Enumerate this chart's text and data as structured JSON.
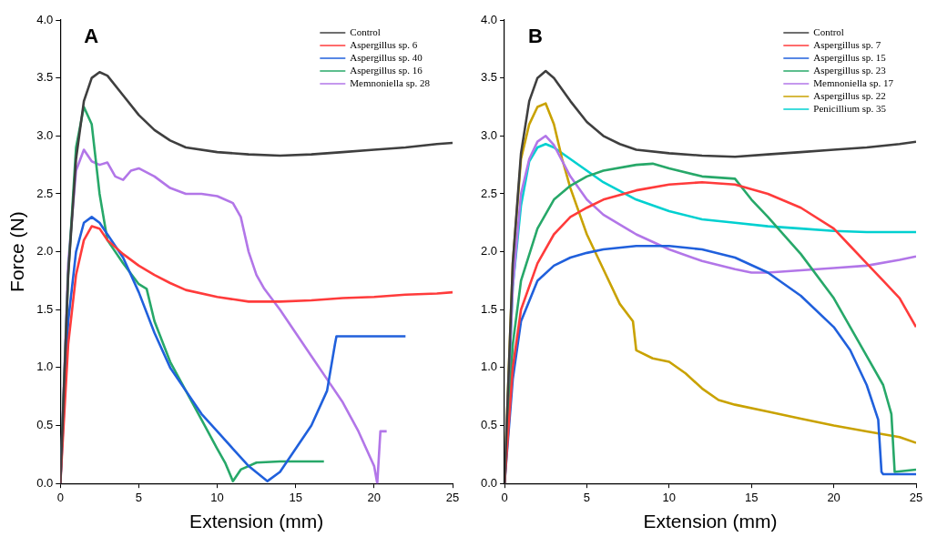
{
  "chart_data": [
    {
      "type": "line",
      "title": "A",
      "xlabel": "Extension (mm)",
      "ylabel": "Force (N)",
      "xlim": [
        0,
        25
      ],
      "xticks": [
        0,
        5,
        10,
        15,
        20,
        25
      ],
      "ylim": [
        0,
        4
      ],
      "yticks": [
        {
          "value": 0,
          "label": "0.0"
        },
        {
          "value": 0.5,
          "label": "0.5"
        },
        {
          "value": 1,
          "label": "1.0"
        },
        {
          "value": 1.5,
          "label": "1.5"
        },
        {
          "value": 2,
          "label": "2.0"
        },
        {
          "value": 2.5,
          "label": "2.5"
        },
        {
          "value": 3,
          "label": "3.0"
        },
        {
          "value": 3.5,
          "label": "3.5"
        },
        {
          "value": 4,
          "label": "4.0"
        }
      ],
      "grid": false,
      "legend": "top right",
      "marker": "none",
      "line_style": "solid",
      "series": [
        {
          "name": "Control",
          "color": "#3f3f3f",
          "x": [
            0,
            0.5,
            1,
            1.5,
            2,
            2.5,
            3,
            4,
            5,
            6,
            7,
            8,
            10,
            12,
            14,
            16,
            18,
            20,
            22,
            24,
            25
          ],
          "values": [
            0,
            1.8,
            2.8,
            3.3,
            3.5,
            3.55,
            3.52,
            3.35,
            3.18,
            3.05,
            2.96,
            2.9,
            2.86,
            2.84,
            2.83,
            2.84,
            2.86,
            2.88,
            2.9,
            2.93,
            2.94
          ]
        },
        {
          "name": "Aspergillus sp. 6",
          "color": "#ff3b3b",
          "x": [
            0,
            0.5,
            1,
            1.5,
            2,
            2.5,
            3,
            4,
            5,
            6,
            7,
            8,
            10,
            12,
            14,
            16,
            18,
            20,
            22,
            24,
            25
          ],
          "values": [
            0,
            1.2,
            1.8,
            2.1,
            2.22,
            2.2,
            2.1,
            1.98,
            1.88,
            1.8,
            1.73,
            1.67,
            1.61,
            1.57,
            1.57,
            1.58,
            1.6,
            1.61,
            1.63,
            1.64,
            1.65
          ]
        },
        {
          "name": "Aspergillus sp. 40",
          "color": "#2060dc",
          "x": [
            0,
            0.5,
            1,
            1.5,
            2,
            2.5,
            3,
            4,
            5,
            6,
            7,
            8,
            9,
            10,
            11,
            12,
            13.2,
            14,
            15,
            16,
            17,
            17.5,
            17.6,
            20,
            22
          ],
          "values": [
            0,
            1.4,
            2,
            2.25,
            2.3,
            2.25,
            2.15,
            1.95,
            1.65,
            1.3,
            1,
            0.8,
            0.6,
            0.45,
            0.3,
            0.15,
            0.02,
            0.1,
            0.3,
            0.5,
            0.8,
            1.2,
            1.27,
            1.27,
            1.27
          ]
        },
        {
          "name": "Aspergillus sp. 16",
          "color": "#27a869",
          "x": [
            0,
            0.5,
            1,
            1.5,
            2,
            2.5,
            3,
            4,
            5,
            5.5,
            6,
            7,
            8,
            9,
            10,
            10.5,
            11,
            11.5,
            12.5,
            14,
            16.8
          ],
          "values": [
            0,
            1.8,
            2.9,
            3.25,
            3.1,
            2.5,
            2.1,
            1.9,
            1.72,
            1.68,
            1.4,
            1.05,
            0.8,
            0.55,
            0.3,
            0.18,
            0.02,
            0.12,
            0.18,
            0.19,
            0.19
          ]
        },
        {
          "name": "Memnoniella sp. 28",
          "color": "#b276e8",
          "x": [
            0,
            0.5,
            1,
            1.5,
            2,
            2.5,
            3,
            3.5,
            4,
            4.5,
            5,
            6,
            7,
            8,
            9,
            10,
            11,
            11.5,
            12,
            12.5,
            13,
            14,
            15,
            16,
            17,
            18,
            19,
            20,
            20.2,
            20.4,
            20.8
          ],
          "values": [
            0,
            1.9,
            2.7,
            2.88,
            2.78,
            2.75,
            2.77,
            2.65,
            2.62,
            2.7,
            2.72,
            2.65,
            2.55,
            2.5,
            2.5,
            2.48,
            2.42,
            2.3,
            2,
            1.8,
            1.68,
            1.5,
            1.3,
            1.1,
            0.9,
            0.7,
            0.45,
            0.15,
            0,
            0.45,
            0.45
          ]
        }
      ]
    },
    {
      "type": "line",
      "title": "B",
      "xlabel": "Extension (mm)",
      "xlim": [
        0,
        25
      ],
      "xticks": [
        0,
        5,
        10,
        15,
        20,
        25
      ],
      "ylim": [
        0,
        4
      ],
      "yticks": [
        {
          "value": 0,
          "label": "0.0"
        },
        {
          "value": 0.5,
          "label": "0.5"
        },
        {
          "value": 1,
          "label": "1.0"
        },
        {
          "value": 1.5,
          "label": "1.5"
        },
        {
          "value": 2,
          "label": "2.0"
        },
        {
          "value": 2.5,
          "label": "2.5"
        },
        {
          "value": 3,
          "label": "3.0"
        },
        {
          "value": 3.5,
          "label": "3.5"
        },
        {
          "value": 4,
          "label": "4.0"
        }
      ],
      "grid": false,
      "legend": "top right",
      "marker": "none",
      "line_style": "solid",
      "series": [
        {
          "name": "Control",
          "color": "#3f3f3f",
          "x": [
            0,
            0.5,
            1,
            1.5,
            2,
            2.5,
            3,
            4,
            5,
            6,
            7,
            8,
            10,
            12,
            14,
            16,
            18,
            20,
            22,
            24,
            25
          ],
          "values": [
            0,
            1.9,
            2.85,
            3.3,
            3.5,
            3.56,
            3.5,
            3.3,
            3.12,
            3,
            2.93,
            2.88,
            2.85,
            2.83,
            2.82,
            2.84,
            2.86,
            2.88,
            2.9,
            2.93,
            2.95
          ]
        },
        {
          "name": "Aspergillus sp. 7",
          "color": "#ff3b3b",
          "x": [
            0,
            0.5,
            1,
            2,
            3,
            4,
            5,
            6,
            8,
            10,
            12,
            14,
            16,
            18,
            20,
            21,
            22,
            23,
            24,
            25
          ],
          "values": [
            0,
            1,
            1.5,
            1.9,
            2.15,
            2.3,
            2.38,
            2.45,
            2.53,
            2.58,
            2.6,
            2.58,
            2.5,
            2.38,
            2.2,
            2.05,
            1.9,
            1.75,
            1.6,
            1.35
          ]
        },
        {
          "name": "Aspergillus sp. 15",
          "color": "#2060dc",
          "x": [
            0,
            0.5,
            1,
            2,
            3,
            4,
            5,
            6,
            8,
            10,
            12,
            14,
            16,
            18,
            20,
            21,
            22,
            22.7,
            22.9,
            23,
            25
          ],
          "values": [
            0,
            0.9,
            1.4,
            1.75,
            1.88,
            1.95,
            1.99,
            2.02,
            2.05,
            2.05,
            2.02,
            1.95,
            1.82,
            1.62,
            1.35,
            1.15,
            0.85,
            0.55,
            0.1,
            0.08,
            0.08
          ]
        },
        {
          "name": "Aspergillus sp. 23",
          "color": "#27a869",
          "x": [
            0,
            0.5,
            1,
            2,
            3,
            4,
            5,
            6,
            8,
            9,
            10,
            12,
            14,
            15,
            16,
            18,
            20,
            21,
            22,
            23,
            23.5,
            23.7,
            25
          ],
          "values": [
            0,
            1.2,
            1.75,
            2.2,
            2.45,
            2.57,
            2.65,
            2.7,
            2.75,
            2.76,
            2.72,
            2.65,
            2.63,
            2.45,
            2.3,
            1.98,
            1.6,
            1.35,
            1.1,
            0.85,
            0.6,
            0.1,
            0.12
          ]
        },
        {
          "name": "Memnoniella sp. 17",
          "color": "#b276e8",
          "x": [
            0,
            0.5,
            1,
            1.5,
            2,
            2.5,
            3,
            4,
            5,
            6,
            8,
            10,
            12,
            14,
            15,
            16,
            18,
            20,
            22,
            24,
            25
          ],
          "values": [
            0,
            1.7,
            2.5,
            2.8,
            2.95,
            3,
            2.92,
            2.65,
            2.45,
            2.32,
            2.15,
            2.02,
            1.92,
            1.85,
            1.82,
            1.82,
            1.84,
            1.86,
            1.88,
            1.93,
            1.96
          ]
        },
        {
          "name": "Aspergillus sp. 22",
          "color": "#c9a200",
          "x": [
            0,
            0.5,
            1,
            1.5,
            2,
            2.5,
            3,
            3.5,
            4,
            5,
            6,
            7,
            7.8,
            8,
            9,
            10,
            11,
            12,
            13,
            14,
            16,
            18,
            20,
            22,
            24,
            25
          ],
          "values": [
            0,
            1.9,
            2.8,
            3.1,
            3.25,
            3.28,
            3.1,
            2.8,
            2.55,
            2.15,
            1.85,
            1.55,
            1.4,
            1.15,
            1.08,
            1.05,
            0.95,
            0.82,
            0.72,
            0.68,
            0.62,
            0.56,
            0.5,
            0.45,
            0.4,
            0.35
          ]
        },
        {
          "name": "Penicillium sp. 35",
          "color": "#00d0d0",
          "x": [
            0,
            0.5,
            1,
            1.5,
            2,
            2.5,
            3,
            4,
            5,
            6,
            8,
            10,
            12,
            14,
            16,
            18,
            20,
            22,
            25
          ],
          "values": [
            0,
            1.7,
            2.4,
            2.78,
            2.9,
            2.93,
            2.9,
            2.8,
            2.7,
            2.6,
            2.45,
            2.35,
            2.28,
            2.25,
            2.22,
            2.2,
            2.18,
            2.17,
            2.17
          ]
        }
      ]
    }
  ]
}
